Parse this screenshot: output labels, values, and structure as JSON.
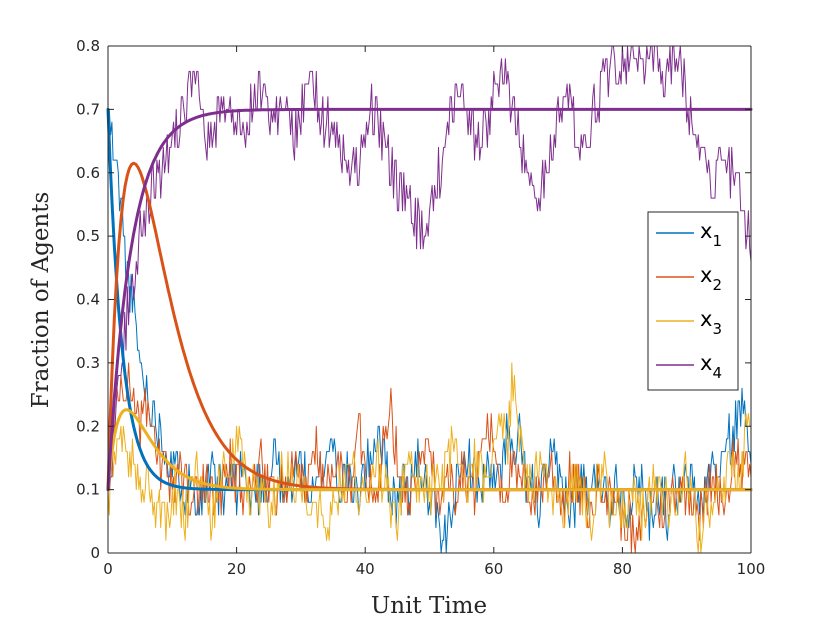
{
  "chart_data": {
    "type": "line",
    "title": "",
    "xlabel": "Unit Time",
    "ylabel": "Fraction of Agents",
    "xlim": [
      0,
      100
    ],
    "ylim": [
      0,
      0.8
    ],
    "x_ticks": [
      0,
      20,
      40,
      60,
      80,
      100
    ],
    "y_ticks": [
      0,
      0.1,
      0.2,
      0.3,
      0.4,
      0.5,
      0.6,
      0.7,
      0.8
    ],
    "x_tick_labels": [
      "0",
      "20",
      "40",
      "60",
      "80",
      "100"
    ],
    "y_tick_labels": [
      "0",
      "0.1",
      "0.2",
      "0.3",
      "0.4",
      "0.5",
      "0.6",
      "0.7",
      "0.8"
    ],
    "grid": false,
    "legend_position": "right",
    "series": [
      {
        "name": "x1",
        "label_base": "x",
        "label_sub": "1",
        "color": "#0072BD",
        "start": 0.7,
        "equilibrium": 0.1,
        "rate": 0.45,
        "noise_seed": 11,
        "noisy_values": [
          0.7,
          0.62,
          0.55,
          0.44,
          0.38,
          0.3,
          0.26,
          0.22,
          0.2,
          0.16,
          0.14,
          0.12,
          0.1,
          0.12,
          0.08,
          0.1,
          0.12,
          0.1,
          0.08,
          0.12,
          0.1,
          0.14,
          0.08,
          0.1,
          0.12,
          0.1,
          0.18,
          0.08,
          0.1,
          0.12,
          0.14,
          0.1,
          0.08,
          0.12,
          0.16,
          0.18,
          0.1,
          0.14,
          0.08,
          0.1,
          0.12,
          0.16,
          0.2,
          0.14,
          0.1,
          0.08,
          0.12,
          0.1,
          0.14,
          0.12,
          0.08,
          0.06,
          0.0,
          0.06,
          0.1,
          0.12,
          0.16,
          0.12,
          0.1,
          0.14,
          0.1,
          0.12,
          0.2,
          0.14,
          0.18,
          0.12,
          0.1,
          0.08,
          0.12,
          0.14,
          0.12,
          0.1,
          0.06,
          0.1,
          0.12,
          0.08,
          0.14,
          0.1,
          0.08,
          0.12,
          0.1,
          0.08,
          0.1,
          0.12,
          0.06,
          0.08,
          0.1,
          0.06,
          0.1,
          0.08,
          0.12,
          0.1,
          0.08,
          0.1,
          0.14,
          0.12,
          0.16,
          0.18,
          0.22,
          0.24,
          0.18
        ]
      },
      {
        "name": "x2",
        "label_base": "x",
        "label_sub": "2",
        "color": "#D95319",
        "start": 0.1,
        "equilibrium": 0.1,
        "rate": 0.25,
        "hump": 0.35,
        "noise_seed": 23,
        "noisy_values": [
          0.1,
          0.22,
          0.26,
          0.28,
          0.24,
          0.2,
          0.22,
          0.18,
          0.14,
          0.12,
          0.1,
          0.14,
          0.12,
          0.08,
          0.1,
          0.12,
          0.1,
          0.08,
          0.12,
          0.14,
          0.1,
          0.08,
          0.12,
          0.1,
          0.14,
          0.1,
          0.08,
          0.12,
          0.1,
          0.14,
          0.12,
          0.1,
          0.18,
          0.14,
          0.1,
          0.12,
          0.14,
          0.1,
          0.12,
          0.2,
          0.14,
          0.1,
          0.12,
          0.18,
          0.22,
          0.14,
          0.1,
          0.08,
          0.12,
          0.14,
          0.18,
          0.1,
          0.08,
          0.12,
          0.1,
          0.14,
          0.12,
          0.1,
          0.16,
          0.2,
          0.18,
          0.12,
          0.1,
          0.14,
          0.1,
          0.12,
          0.08,
          0.1,
          0.12,
          0.14,
          0.1,
          0.08,
          0.12,
          0.1,
          0.08,
          0.06,
          0.1,
          0.12,
          0.08,
          0.1,
          0.04,
          0.06,
          0.0,
          0.04,
          0.08,
          0.1,
          0.06,
          0.08,
          0.1,
          0.12,
          0.08,
          0.1,
          0.06,
          0.08,
          0.12,
          0.1,
          0.08,
          0.14,
          0.16,
          0.12,
          0.14
        ]
      },
      {
        "name": "x3",
        "label_base": "x",
        "label_sub": "3",
        "color": "#EDB120",
        "start": 0.1,
        "equilibrium": 0.1,
        "rate": 0.35,
        "hump": 0.12,
        "noise_seed": 37,
        "noisy_values": [
          0.1,
          0.14,
          0.2,
          0.16,
          0.14,
          0.1,
          0.12,
          0.08,
          0.06,
          0.04,
          0.1,
          0.08,
          0.06,
          0.1,
          0.12,
          0.08,
          0.06,
          0.1,
          0.12,
          0.14,
          0.18,
          0.14,
          0.1,
          0.12,
          0.08,
          0.06,
          0.1,
          0.12,
          0.14,
          0.1,
          0.12,
          0.08,
          0.06,
          0.1,
          0.04,
          0.08,
          0.1,
          0.12,
          0.14,
          0.1,
          0.08,
          0.12,
          0.14,
          0.1,
          0.08,
          0.06,
          0.12,
          0.14,
          0.1,
          0.12,
          0.08,
          0.1,
          0.12,
          0.14,
          0.18,
          0.12,
          0.1,
          0.14,
          0.12,
          0.1,
          0.18,
          0.22,
          0.16,
          0.28,
          0.18,
          0.12,
          0.1,
          0.14,
          0.12,
          0.1,
          0.08,
          0.06,
          0.1,
          0.12,
          0.08,
          0.06,
          0.1,
          0.12,
          0.08,
          0.1,
          0.06,
          0.08,
          0.1,
          0.06,
          0.08,
          0.12,
          0.1,
          0.08,
          0.06,
          0.1,
          0.12,
          0.08,
          0.02,
          0.06,
          0.08,
          0.1,
          0.12,
          0.14,
          0.1,
          0.18,
          0.2
        ]
      },
      {
        "name": "x4",
        "label_base": "x",
        "label_sub": "4",
        "color": "#7E2F8E",
        "start": 0.1,
        "equilibrium": 0.7,
        "rate": 0.28,
        "noise_seed": 53,
        "noisy_values": [
          0.1,
          0.2,
          0.3,
          0.38,
          0.44,
          0.5,
          0.54,
          0.58,
          0.6,
          0.64,
          0.66,
          0.68,
          0.7,
          0.74,
          0.72,
          0.66,
          0.64,
          0.68,
          0.72,
          0.7,
          0.68,
          0.66,
          0.7,
          0.72,
          0.74,
          0.7,
          0.68,
          0.72,
          0.7,
          0.66,
          0.7,
          0.72,
          0.74,
          0.7,
          0.68,
          0.66,
          0.64,
          0.62,
          0.6,
          0.62,
          0.66,
          0.7,
          0.68,
          0.64,
          0.6,
          0.58,
          0.56,
          0.54,
          0.52,
          0.5,
          0.54,
          0.58,
          0.62,
          0.68,
          0.72,
          0.74,
          0.7,
          0.66,
          0.64,
          0.68,
          0.72,
          0.76,
          0.74,
          0.7,
          0.66,
          0.62,
          0.58,
          0.56,
          0.6,
          0.64,
          0.68,
          0.72,
          0.7,
          0.66,
          0.64,
          0.68,
          0.72,
          0.74,
          0.76,
          0.78,
          0.76,
          0.8,
          0.78,
          0.76,
          0.8,
          0.78,
          0.74,
          0.76,
          0.8,
          0.78,
          0.72,
          0.68,
          0.66,
          0.62,
          0.58,
          0.62,
          0.64,
          0.6,
          0.58,
          0.52,
          0.48
        ]
      }
    ]
  }
}
